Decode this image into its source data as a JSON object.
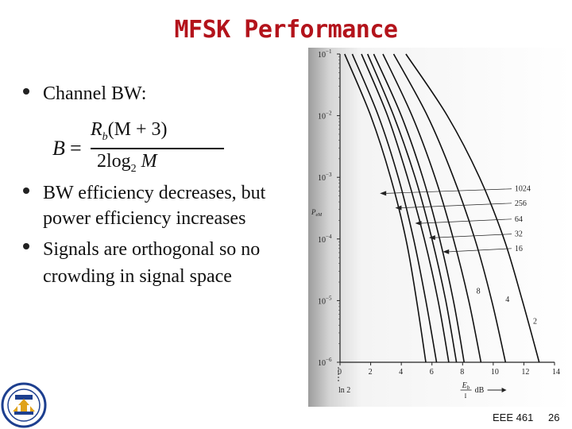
{
  "slide": {
    "title": "MFSK Performance",
    "bullets": [
      "Channel BW:",
      "BW efficiency decreases, but",
      "power efficiency increases",
      "Signals are orthogonal so no",
      "crowding in signal space"
    ],
    "formula": {
      "lhs": "B",
      "eq": "=",
      "numerator_var": "R",
      "numerator_sub": "b",
      "numerator_rest": "(M + 3)",
      "denominator_pre": "2log",
      "denominator_sub": "2",
      "denominator_var": "M"
    }
  },
  "chart_data": {
    "type": "line",
    "ylabel": "P",
    "ylabel_sub": "eM",
    "xlabel_main": "E",
    "xlabel_sub": "b",
    "xlabel_den": "I",
    "xlabel_unit": "dB",
    "x_extra_tick": "ln 2",
    "y_scale": "log",
    "ylim": [
      1e-06,
      0.1
    ],
    "xlim": [
      0,
      14
    ],
    "x_ticks": [
      "0",
      "2",
      "4",
      "6",
      "8",
      "10",
      "12",
      "14"
    ],
    "y_ticks": [
      {
        "base": "10",
        "exp": "−1"
      },
      {
        "base": "10",
        "exp": "−2"
      },
      {
        "base": "10",
        "exp": "−3"
      },
      {
        "base": "10",
        "exp": "−4"
      },
      {
        "base": "10",
        "exp": "−5"
      },
      {
        "base": "10",
        "exp": "−6"
      }
    ],
    "series": [
      {
        "name": "1024",
        "x": [
          0.3,
          2.0,
          3.3,
          4.3,
          5.0,
          5.6
        ],
        "y": [
          0.1,
          0.01,
          0.001,
          0.0001,
          1e-05,
          1e-06
        ]
      },
      {
        "name": "256",
        "x": [
          0.8,
          2.5,
          3.8,
          4.8,
          5.6,
          6.3
        ],
        "y": [
          0.1,
          0.01,
          0.001,
          0.0001,
          1e-05,
          1e-06
        ]
      },
      {
        "name": "64",
        "x": [
          1.4,
          3.1,
          4.4,
          5.5,
          6.4,
          7.1
        ],
        "y": [
          0.1,
          0.01,
          0.001,
          0.0001,
          1e-05,
          1e-06
        ]
      },
      {
        "name": "32",
        "x": [
          1.8,
          3.5,
          4.9,
          6.0,
          6.9,
          7.6
        ],
        "y": [
          0.1,
          0.01,
          0.001,
          0.0001,
          1e-05,
          1e-06
        ]
      },
      {
        "name": "16",
        "x": [
          2.2,
          4.0,
          5.4,
          6.5,
          7.4,
          8.1
        ],
        "y": [
          0.1,
          0.01,
          0.001,
          0.0001,
          1e-05,
          1e-06
        ]
      },
      {
        "name": "8",
        "x": [
          2.8,
          4.7,
          6.2,
          7.4,
          8.4,
          9.2
        ],
        "y": [
          0.1,
          0.01,
          0.001,
          0.0001,
          1e-05,
          1e-06
        ]
      },
      {
        "name": "4",
        "x": [
          3.5,
          5.7,
          7.4,
          8.8,
          9.9,
          10.8
        ],
        "y": [
          0.1,
          0.01,
          0.001,
          0.0001,
          1e-05,
          1e-06
        ]
      },
      {
        "name": "2",
        "x": [
          4.3,
          7.0,
          9.1,
          10.7,
          11.9,
          13.0
        ],
        "y": [
          0.1,
          0.01,
          0.001,
          0.0001,
          1e-05,
          1e-06
        ]
      }
    ],
    "grid": false,
    "legend": "inline labels on right"
  },
  "footer": {
    "course": "EEE 461",
    "page": "26"
  },
  "colors": {
    "title": "#b3131b",
    "text": "#111111"
  }
}
